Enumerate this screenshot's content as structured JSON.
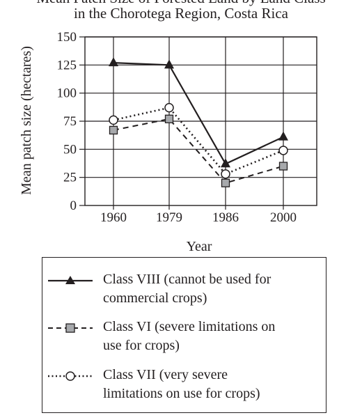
{
  "title_line1": "Mean Patch Size of Forested Land by Land Class",
  "title_line2": "in the Chorotega Region, Costa Rica",
  "chart_data": {
    "type": "line",
    "title": "Mean Patch Size of Forested Land by Land Class in the Chorotega Region, Costa Rica",
    "xlabel": "Year",
    "ylabel": "Mean patch size (hectares)",
    "categories": [
      "1960",
      "1979",
      "1986",
      "2000"
    ],
    "ylim": [
      0,
      150
    ],
    "yticks": [
      0,
      25,
      50,
      75,
      100,
      125,
      150
    ],
    "grid": true,
    "series": [
      {
        "name": "Class VIII (cannot be used for commercial crops)",
        "label_lines": [
          "Class VIII (cannot be used for",
          "commercial crops)"
        ],
        "values": [
          127,
          125,
          37,
          61
        ],
        "marker": "triangle",
        "line": "solid"
      },
      {
        "name": "Class VI (severe limitations on use for crops)",
        "label_lines": [
          "Class VI (severe limitations on",
          "use for crops)"
        ],
        "values": [
          67,
          77,
          20,
          35
        ],
        "marker": "square",
        "line": "dashed"
      },
      {
        "name": "Class VII (very severe limitations on use for crops)",
        "label_lines": [
          "Class VII (very severe",
          "limitations on use for crops)"
        ],
        "values": [
          76,
          87,
          28,
          49
        ],
        "marker": "circle",
        "line": "dotted"
      }
    ]
  },
  "colors": {
    "ink": "#231f20",
    "square_fill": "#a7a9ac",
    "background": "#ffffff"
  }
}
